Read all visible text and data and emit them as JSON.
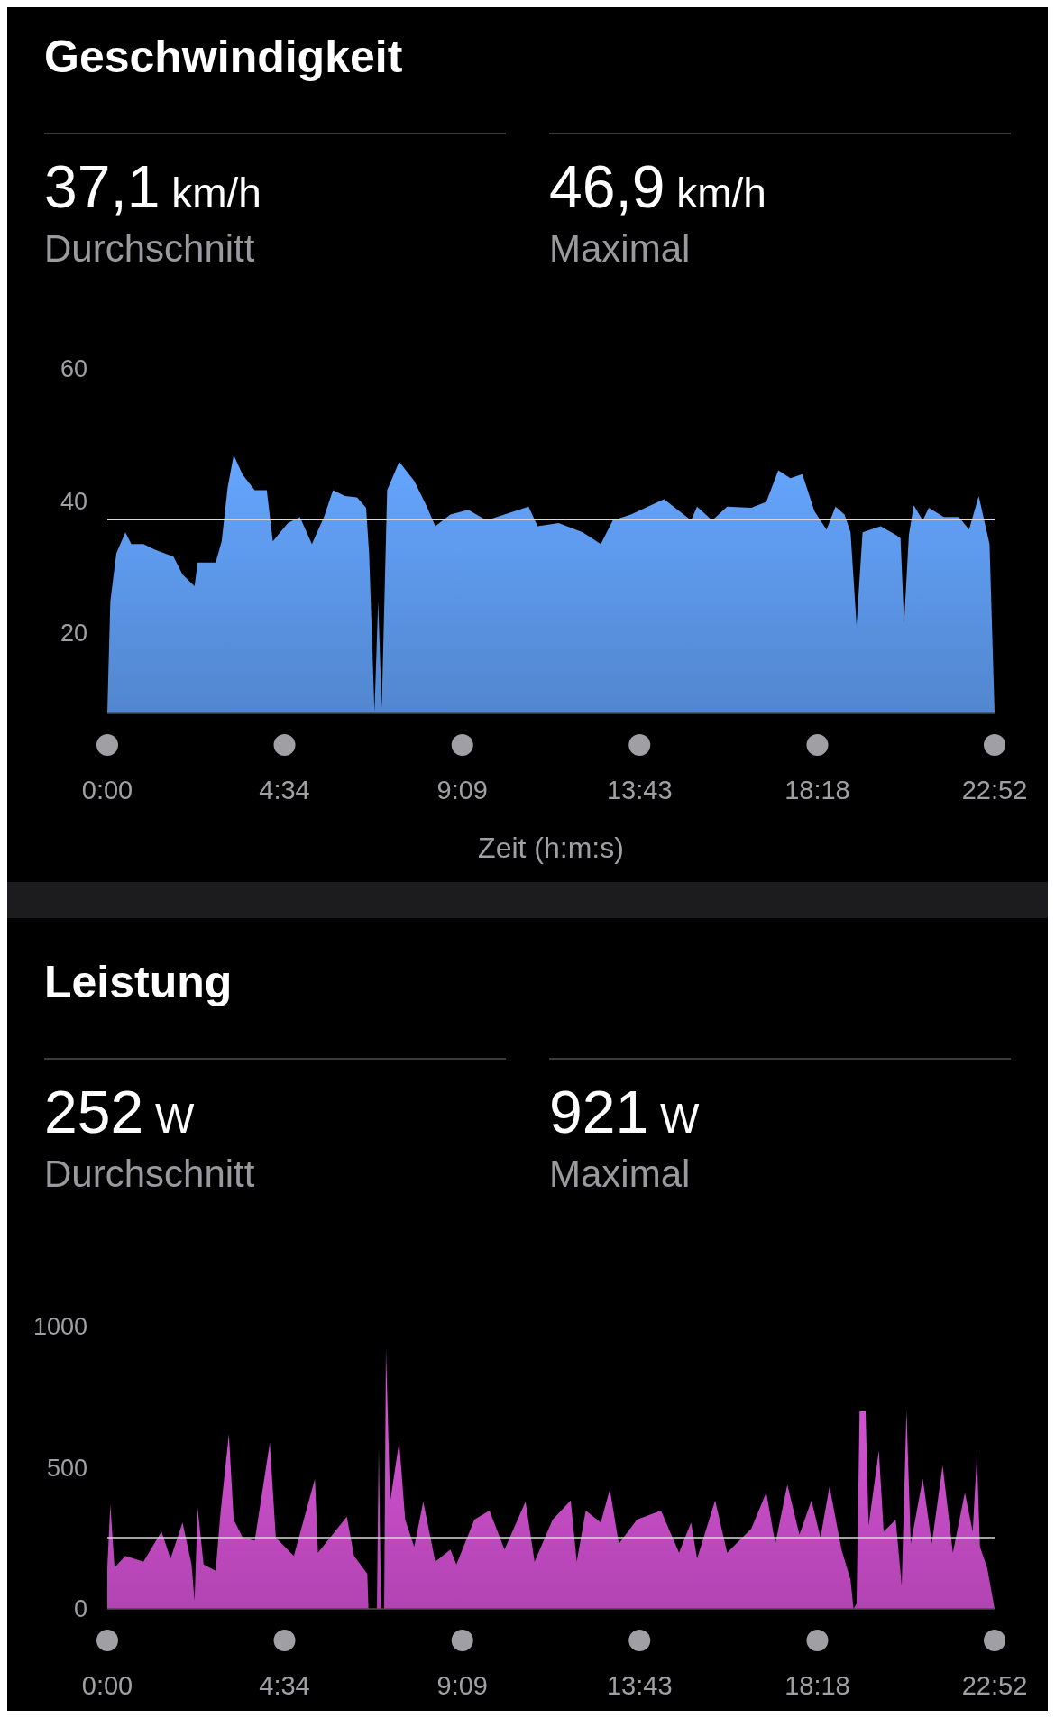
{
  "chart_data": [
    {
      "type": "area",
      "title": "Geschwindigkeit",
      "annotations": [
        "37,1 km/h",
        "Durchschnitt",
        "46,9 km/h",
        "Maximal"
      ],
      "xlabel": "Zeit (h:m:s)",
      "xlim": [
        0,
        22.867
      ],
      "xticks": [
        {
          "value": 0,
          "label": "0:00"
        },
        {
          "value": 4.567,
          "label": "4:34"
        },
        {
          "value": 9.15,
          "label": "9:09"
        },
        {
          "value": 13.717,
          "label": "13:43"
        },
        {
          "value": 18.3,
          "label": "18:18"
        },
        {
          "value": 22.867,
          "label": "22:52"
        }
      ],
      "ylim": [
        7.7,
        60
      ],
      "yticks": [
        20,
        40,
        60
      ],
      "grid": false,
      "ref_lines": [
        {
          "axis": "y",
          "value": 37.1,
          "color": "#d9d9d9"
        }
      ],
      "series": [
        {
          "color": "#5b95e6",
          "x": [
            0,
            0.078,
            0.233,
            0.465,
            0.62,
            0.931,
            1.241,
            1.706,
            1.939,
            2.249,
            2.327,
            2.792,
            2.947,
            3.102,
            3.257,
            3.49,
            3.8,
            4.11,
            4.265,
            4.653,
            4.963,
            5.273,
            5.584,
            5.816,
            6.126,
            6.437,
            6.669,
            6.747,
            6.886,
            6.98,
            7.073,
            7.212,
            7.522,
            7.91,
            8.22,
            8.453,
            8.841,
            9.306,
            9.771,
            10.392,
            10.857,
            11.09,
            11.633,
            12.253,
            12.718,
            13.028,
            13.494,
            14.347,
            15.045,
            15.2,
            15.588,
            15.975,
            16.596,
            16.983,
            17.294,
            17.604,
            17.914,
            18.224,
            18.535,
            18.767,
            19,
            19.155,
            19.31,
            19.465,
            19.93,
            20.318,
            20.442,
            20.535,
            20.659,
            20.783,
            21.016,
            21.171,
            21.559,
            21.947,
            22.21,
            22.458,
            22.737,
            22.867
          ],
          "values": [
            7.8,
            24.7,
            32,
            35.2,
            33.4,
            33.4,
            32.5,
            31.5,
            28.8,
            27,
            30.6,
            30.6,
            33.8,
            42,
            46.9,
            43.9,
            41.6,
            41.6,
            33.8,
            36.6,
            37.5,
            33.4,
            37.5,
            41.6,
            40.7,
            40.5,
            38.9,
            32,
            8,
            24.7,
            8.5,
            41.6,
            45.9,
            43,
            39.3,
            36.1,
            37.9,
            38.6,
            37,
            38.2,
            39.1,
            36.1,
            36.6,
            35.2,
            33.4,
            37,
            37.9,
            40.2,
            37,
            39.1,
            37,
            39.1,
            38.9,
            39.8,
            44.6,
            43.4,
            44,
            38.4,
            35.6,
            39.1,
            37.9,
            35.2,
            21.1,
            35.2,
            36.1,
            34.8,
            34.3,
            21.5,
            34.8,
            39.3,
            37,
            38.9,
            37.5,
            37.5,
            35.6,
            40.7,
            33.4,
            7.8
          ]
        }
      ]
    },
    {
      "type": "area",
      "title": "Leistung",
      "annotations": [
        "252 W",
        "Durchschnitt",
        "921 W",
        "Maximal"
      ],
      "xlim": [
        0,
        22.867
      ],
      "xticks": [
        {
          "value": 0,
          "label": "0:00"
        },
        {
          "value": 4.567,
          "label": "4:34"
        },
        {
          "value": 9.15,
          "label": "9:09"
        },
        {
          "value": 13.717,
          "label": "13:43"
        },
        {
          "value": 18.3,
          "label": "18:18"
        },
        {
          "value": 22.867,
          "label": "22:52"
        }
      ],
      "ylim": [
        0,
        1000
      ],
      "yticks": [
        0,
        500,
        1000
      ],
      "grid": false,
      "ref_lines": [
        {
          "axis": "y",
          "value": 252,
          "color": "#d9d9d9"
        }
      ],
      "series": [
        {
          "color": "#c64cc6",
          "x": [
            0,
            0.078,
            0.186,
            0.465,
            0.931,
            1.396,
            1.629,
            1.939,
            2.171,
            2.249,
            2.327,
            2.482,
            2.792,
            2.916,
            3.133,
            3.257,
            3.49,
            3.8,
            4.188,
            4.343,
            4.808,
            5.351,
            5.429,
            6.173,
            6.359,
            6.701,
            6.731,
            6.948,
            6.995,
            7.057,
            7.135,
            7.181,
            7.29,
            7.522,
            7.677,
            7.91,
            8.143,
            8.453,
            8.841,
            8.996,
            9.461,
            9.849,
            10.237,
            10.779,
            11.012,
            11.477,
            11.943,
            12.098,
            12.33,
            12.718,
            12.951,
            13.184,
            13.649,
            14.269,
            14.735,
            15.045,
            15.2,
            15.665,
            15.975,
            16.596,
            16.983,
            17.216,
            17.526,
            17.837,
            18.147,
            18.38,
            18.612,
            18.922,
            19.155,
            19.232,
            19.31,
            19.388,
            19.543,
            19.62,
            19.884,
            20.008,
            20.318,
            20.473,
            20.597,
            20.706,
            21.016,
            21.249,
            21.528,
            21.792,
            22.102,
            22.303,
            22.412,
            22.49,
            22.676,
            22.867
          ],
          "values": [
            146,
            370,
            146,
            188,
            167,
            274,
            178,
            306,
            157,
            29,
            359,
            157,
            135,
            338,
            619,
            316,
            252,
            242,
            589,
            252,
            188,
            461,
            199,
            327,
            188,
            125,
            0,
            0,
            572,
            0,
            0,
            921,
            380,
            593,
            316,
            220,
            380,
            167,
            210,
            157,
            316,
            348,
            210,
            380,
            167,
            316,
            384,
            167,
            348,
            306,
            423,
            231,
            316,
            348,
            199,
            306,
            178,
            384,
            199,
            284,
            412,
            231,
            440,
            263,
            384,
            252,
            434,
            210,
            103,
            0,
            18,
            700,
            700,
            295,
            561,
            274,
            316,
            82,
            704,
            231,
            461,
            231,
            508,
            199,
            412,
            274,
            546,
            220,
            146,
            0
          ]
        }
      ]
    }
  ]
}
